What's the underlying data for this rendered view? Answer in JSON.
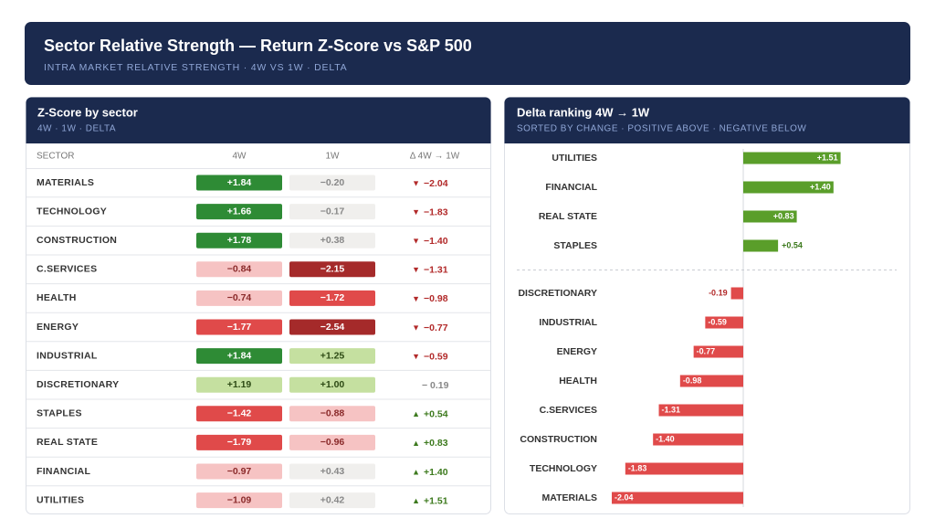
{
  "header": {
    "title": "Sector Relative Strength — Return Z-Score vs S&P 500",
    "subtitle": "INTRA MARKET RELATIVE STRENGTH · 4W VS 1W · DELTA"
  },
  "table": {
    "title": "Z-Score by sector",
    "subtitle": "4W · 1W · DELTA",
    "columns": [
      "SECTOR",
      "4W",
      "1W",
      "Δ 4W → 1W"
    ],
    "rows": [
      {
        "sector": "MATERIALS",
        "w4": {
          "value": 1.84,
          "label": "+1.84"
        },
        "w1": {
          "value": -0.2,
          "label": "−0.20"
        },
        "delta": {
          "value": -2.04,
          "label": "−2.04"
        }
      },
      {
        "sector": "TECHNOLOGY",
        "w4": {
          "value": 1.66,
          "label": "+1.66"
        },
        "w1": {
          "value": -0.17,
          "label": "−0.17"
        },
        "delta": {
          "value": -1.83,
          "label": "−1.83"
        }
      },
      {
        "sector": "CONSTRUCTION",
        "w4": {
          "value": 1.78,
          "label": "+1.78"
        },
        "w1": {
          "value": 0.38,
          "label": "+0.38"
        },
        "delta": {
          "value": -1.4,
          "label": "−1.40"
        }
      },
      {
        "sector": "C.SERVICES",
        "w4": {
          "value": -0.84,
          "label": "−0.84"
        },
        "w1": {
          "value": -2.15,
          "label": "−2.15"
        },
        "delta": {
          "value": -1.31,
          "label": "−1.31"
        }
      },
      {
        "sector": "HEALTH",
        "w4": {
          "value": -0.74,
          "label": "−0.74"
        },
        "w1": {
          "value": -1.72,
          "label": "−1.72"
        },
        "delta": {
          "value": -0.98,
          "label": "−0.98"
        }
      },
      {
        "sector": "ENERGY",
        "w4": {
          "value": -1.77,
          "label": "−1.77"
        },
        "w1": {
          "value": -2.54,
          "label": "−2.54"
        },
        "delta": {
          "value": -0.77,
          "label": "−0.77"
        }
      },
      {
        "sector": "INDUSTRIAL",
        "w4": {
          "value": 1.84,
          "label": "+1.84"
        },
        "w1": {
          "value": 1.25,
          "label": "+1.25"
        },
        "delta": {
          "value": -0.59,
          "label": "−0.59"
        }
      },
      {
        "sector": "DISCRETIONARY",
        "w4": {
          "value": 1.19,
          "label": "+1.19"
        },
        "w1": {
          "value": 1.0,
          "label": "+1.00"
        },
        "delta": {
          "value": -0.19,
          "label": "− 0.19"
        }
      },
      {
        "sector": "STAPLES",
        "w4": {
          "value": -1.42,
          "label": "−1.42"
        },
        "w1": {
          "value": -0.88,
          "label": "−0.88"
        },
        "delta": {
          "value": 0.54,
          "label": "+0.54"
        }
      },
      {
        "sector": "REAL STATE",
        "w4": {
          "value": -1.79,
          "label": "−1.79"
        },
        "w1": {
          "value": -0.96,
          "label": "−0.96"
        },
        "delta": {
          "value": 0.83,
          "label": "+0.83"
        }
      },
      {
        "sector": "FINANCIAL",
        "w4": {
          "value": -0.97,
          "label": "−0.97"
        },
        "w1": {
          "value": 0.43,
          "label": "+0.43"
        },
        "delta": {
          "value": 1.4,
          "label": "+1.40"
        }
      },
      {
        "sector": "UTILITIES",
        "w4": {
          "value": -1.09,
          "label": "−1.09"
        },
        "w1": {
          "value": 0.42,
          "label": "+0.42"
        },
        "delta": {
          "value": 1.51,
          "label": "+1.51"
        }
      }
    ]
  },
  "chart_data": {
    "type": "bar",
    "orientation": "horizontal",
    "title": "Delta ranking 4W → 1W",
    "subtitle": "SORTED BY CHANGE · POSITIVE ABOVE · NEGATIVE BELOW",
    "categories": [
      "UTILITIES",
      "FINANCIAL",
      "REAL STATE",
      "STAPLES",
      "DISCRETIONARY",
      "INDUSTRIAL",
      "ENERGY",
      "HEALTH",
      "C.SERVICES",
      "CONSTRUCTION",
      "TECHNOLOGY",
      "MATERIALS"
    ],
    "values": [
      1.51,
      1.4,
      0.83,
      0.54,
      -0.19,
      -0.59,
      -0.77,
      -0.98,
      -1.31,
      -1.4,
      -1.83,
      -2.04
    ],
    "value_labels": [
      "+1.51",
      "+1.40",
      "+0.83",
      "+0.54",
      "-0.19",
      "-0.59",
      "-0.77",
      "-0.98",
      "-1.31",
      "-1.40",
      "-1.83",
      "-2.04"
    ],
    "positive_color": "#5a9e2a",
    "negative_color": "#e04a4a"
  }
}
